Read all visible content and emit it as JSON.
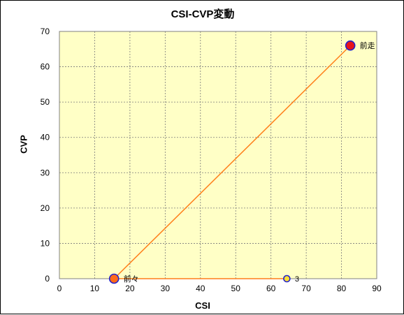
{
  "chart_data": {
    "type": "scatter",
    "title": "CSI-CVP変動",
    "xlabel": "CSI",
    "ylabel": "CVP",
    "xlim": [
      0,
      90
    ],
    "ylim": [
      0,
      70
    ],
    "xticks": [
      0,
      10,
      20,
      30,
      40,
      50,
      60,
      70,
      80,
      90
    ],
    "yticks": [
      0,
      10,
      20,
      30,
      40,
      50,
      60,
      70
    ],
    "grid": true,
    "plot_background": "#ffffc6",
    "line_color": "#ff7f1a",
    "points": [
      {
        "label": "前々",
        "x": 15.5,
        "y": 0,
        "fill": "#ff6a1a",
        "edge": "#2222cc",
        "size": "large"
      },
      {
        "label": "前走",
        "x": 82.5,
        "y": 66,
        "fill": "#e8141a",
        "edge": "#2222cc",
        "size": "large"
      },
      {
        "label": "3",
        "x": 64.5,
        "y": 0,
        "fill": "#ffe033",
        "edge": "#2222cc",
        "size": "small"
      }
    ],
    "segments": [
      {
        "from": "前々",
        "to": "前走"
      },
      {
        "from": "前々",
        "to": "3"
      }
    ]
  }
}
